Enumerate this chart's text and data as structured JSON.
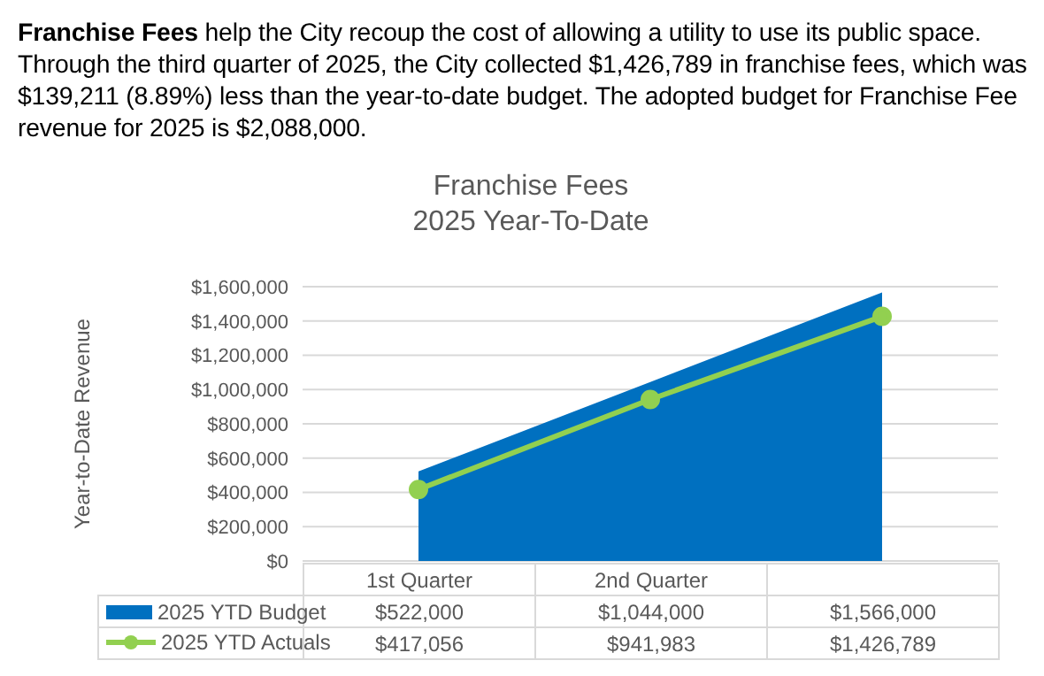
{
  "chart_data": {
    "type": "area",
    "title": "Franchise Fees",
    "subtitle": "2025 Year-To-Date",
    "ylabel": "Year-to-Date Revenue",
    "annotations": [
      "Franchise Fees",
      "help the City recoup the cost of allowing a utility to use its public space. Through the third quarter of 2025, the City collected $1,426,789 in franchise fees, which was $139,211 (8.89%) less than the year-to-date budget. The adopted budget for Franchise Fee revenue for 2025 is $2,088,000."
    ],
    "categories": [
      "1st Quarter",
      "2nd Quarter",
      null
    ],
    "series": [
      {
        "name": "2025 YTD Budget",
        "color": "#0070c0",
        "values": [
          522000,
          1044000,
          1566000
        ],
        "value_labels": [
          "$522,000",
          "$1,044,000",
          "$1,566,000"
        ]
      },
      {
        "name": "2025 YTD Actuals",
        "type": "line",
        "color": "#92d050",
        "marker": "circle",
        "values": [
          417056,
          941983,
          1426789
        ],
        "value_labels": [
          "$417,056",
          "$941,983",
          "$1,426,789"
        ]
      }
    ],
    "ylim": [
      0,
      1600000
    ],
    "yticks": [
      {
        "value": 0,
        "label": "$0"
      },
      {
        "value": 200000,
        "label": "$200,000"
      },
      {
        "value": 400000,
        "label": "$400,000"
      },
      {
        "value": 600000,
        "label": "$600,000"
      },
      {
        "value": 800000,
        "label": "$800,000"
      },
      {
        "value": 1000000,
        "label": "$1,000,000"
      },
      {
        "value": 1200000,
        "label": "$1,200,000"
      },
      {
        "value": 1400000,
        "label": "$1,400,000"
      },
      {
        "value": 1600000,
        "label": "$1,600,000"
      }
    ],
    "grid": "y",
    "legend": "bottom"
  }
}
